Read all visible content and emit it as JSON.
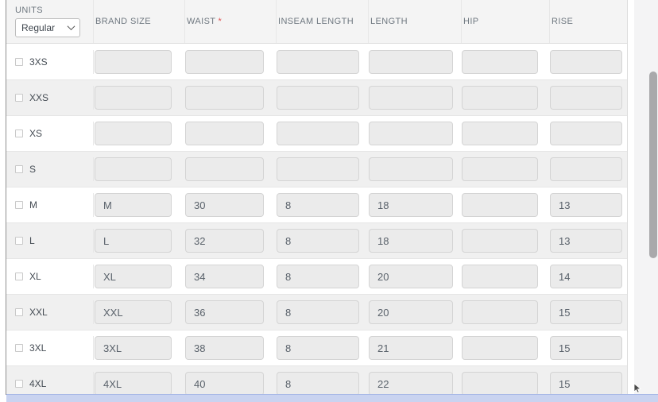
{
  "units": {
    "label": "UNITS",
    "selected": "Regular"
  },
  "table": {
    "required_marker": "*",
    "columns": [
      {
        "key": "brand-size",
        "label": "BRAND SIZE",
        "required": false
      },
      {
        "key": "waist",
        "label": "WAIST",
        "required": true
      },
      {
        "key": "inseam-length",
        "label": "INSEAM LENGTH",
        "required": false
      },
      {
        "key": "length",
        "label": "LENGTH",
        "required": false
      },
      {
        "key": "hip",
        "label": "HIP",
        "required": false
      },
      {
        "key": "rise",
        "label": "RISE",
        "required": false
      }
    ],
    "rows": [
      {
        "size": "3XS",
        "checked": false,
        "values": [
          "",
          "",
          "",
          "",
          "",
          ""
        ]
      },
      {
        "size": "XXS",
        "checked": false,
        "values": [
          "",
          "",
          "",
          "",
          "",
          ""
        ]
      },
      {
        "size": "XS",
        "checked": false,
        "values": [
          "",
          "",
          "",
          "",
          "",
          ""
        ]
      },
      {
        "size": "S",
        "checked": false,
        "values": [
          "",
          "",
          "",
          "",
          "",
          ""
        ]
      },
      {
        "size": "M",
        "checked": false,
        "values": [
          "M",
          "30",
          "8",
          "18",
          "",
          "13"
        ]
      },
      {
        "size": "L",
        "checked": false,
        "values": [
          "L",
          "32",
          "8",
          "18",
          "",
          "13"
        ]
      },
      {
        "size": "XL",
        "checked": false,
        "values": [
          "XL",
          "34",
          "8",
          "20",
          "",
          "14"
        ]
      },
      {
        "size": "XXL",
        "checked": false,
        "values": [
          "XXL",
          "36",
          "8",
          "20",
          "",
          "15"
        ]
      },
      {
        "size": "3XL",
        "checked": false,
        "values": [
          "3XL",
          "38",
          "8",
          "21",
          "",
          "15"
        ]
      },
      {
        "size": "4XL",
        "checked": false,
        "values": [
          "4XL",
          "40",
          "8",
          "22",
          "",
          "15"
        ]
      }
    ]
  },
  "colors": {
    "header_bg": "#f4f4f4",
    "row_alt_bg": "#f0f0f0",
    "input_bg": "#ebebeb",
    "required_asterisk": "#e05252",
    "h_scrollbar_highlight": "#c9d3f0",
    "v_scrollbar_thumb": "#a9a9ab"
  }
}
